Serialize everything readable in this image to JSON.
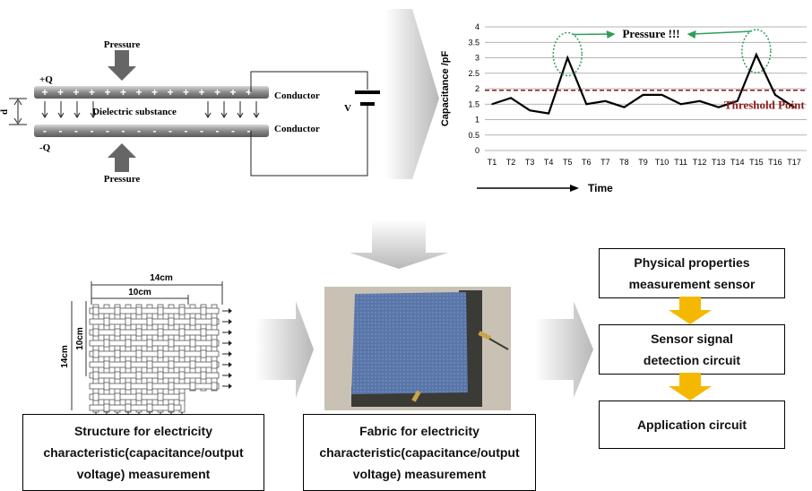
{
  "capacitor": {
    "pressure_top": "Pressure",
    "pressure_bottom": "Pressure",
    "plus_q": "+Q",
    "minus_q": "-Q",
    "d_label": "d",
    "dielectric": "Dielectric substance",
    "conductor_top": "Conductor",
    "conductor_bottom": "Conductor",
    "v_label": "V"
  },
  "chart_data": {
    "type": "line",
    "categories": [
      "T1",
      "T2",
      "T3",
      "T4",
      "T5",
      "T6",
      "T7",
      "T8",
      "T9",
      "T10",
      "T11",
      "T12",
      "T13",
      "T14",
      "T15",
      "T16",
      "T17"
    ],
    "series": [
      {
        "values": [
          1.5,
          1.7,
          1.3,
          1.2,
          3.0,
          1.5,
          1.6,
          1.4,
          1.8,
          1.8,
          1.5,
          1.6,
          1.4,
          1.6,
          3.1,
          1.8,
          1.4
        ]
      }
    ],
    "threshold": 1.95,
    "ylim": [
      0,
      4
    ],
    "yticks": [
      "0",
      "0.5",
      "1",
      "1.5",
      "2",
      "2.5",
      "3",
      "3.5",
      "4"
    ],
    "ylabel": "Capacitance /pF",
    "xlabel": "Time",
    "annotation": "Pressure !!!",
    "threshold_label": "Threshold Point",
    "grid": true,
    "colors": {
      "line": "#000000",
      "threshold": "#8b1a1a",
      "annotation": "#2e9e5a"
    }
  },
  "structure": {
    "dim_14cm_top": "14cm",
    "dim_10cm_top": "10cm",
    "dim_14cm_left": "14cm",
    "dim_10cm_left": "10cm",
    "caption_lines": [
      "Structure for electricity",
      "characteristic(capacitance/output",
      "voltage) measurement"
    ]
  },
  "fabric": {
    "caption_lines": [
      "Fabric for electricity",
      "characteristic(capacitance/output",
      "voltage) measurement"
    ]
  },
  "flow": {
    "box1_lines": [
      "Physical properties",
      "measurement sensor"
    ],
    "box2_lines": [
      "Sensor signal",
      "detection circuit"
    ],
    "box3_lines": [
      "Application circuit"
    ],
    "arrow_color": "#f5b800"
  }
}
